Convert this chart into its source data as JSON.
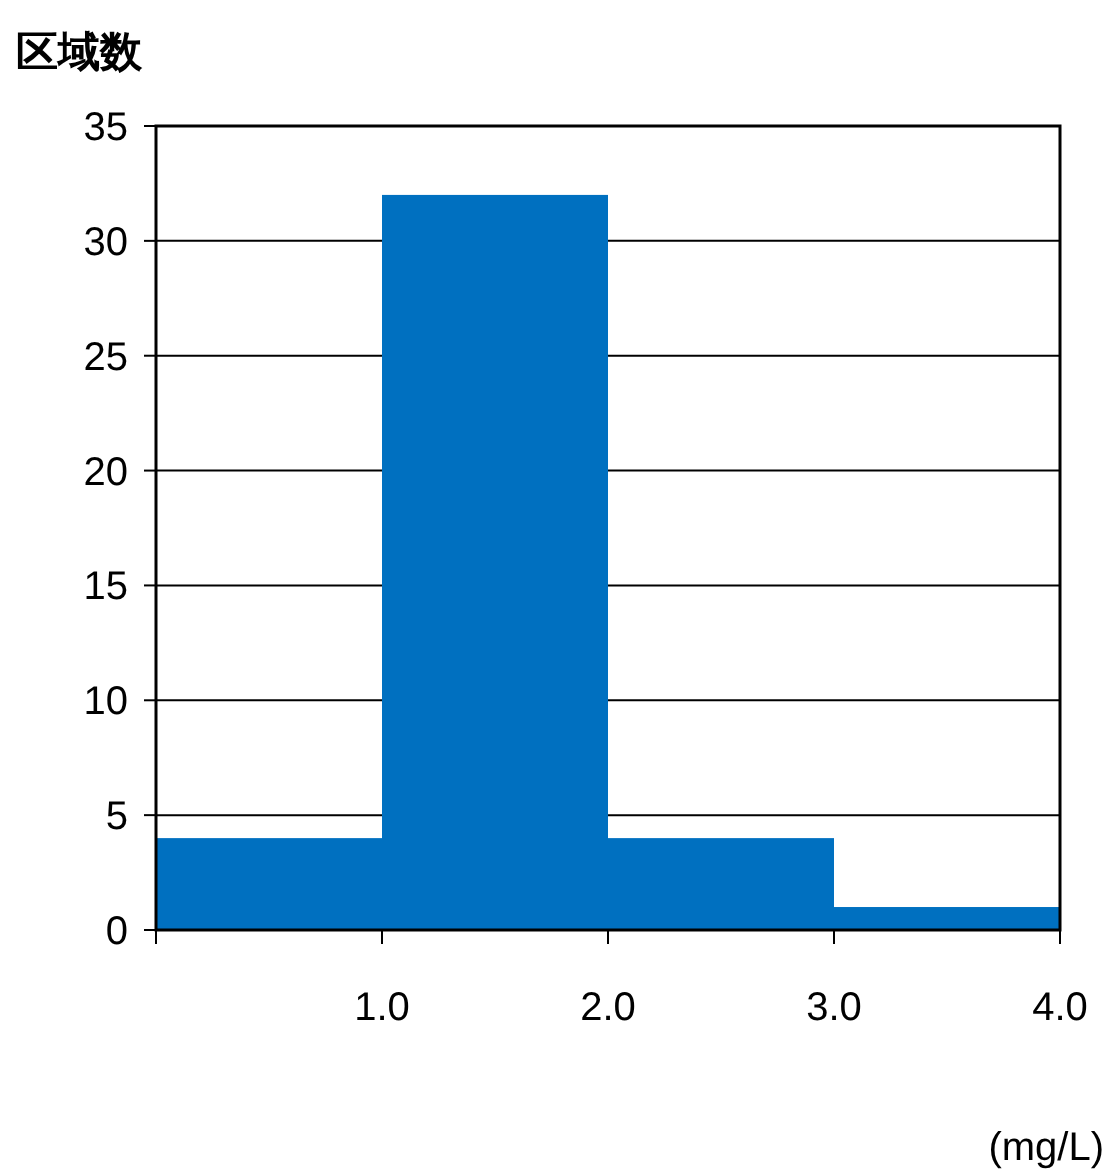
{
  "chart_data": {
    "type": "histogram",
    "ylabel": "区域数",
    "xlabel": "(mg/L)",
    "bins": [
      0,
      1,
      2,
      3,
      4
    ],
    "values": [
      4,
      32,
      4,
      1
    ],
    "color": "#0070c0",
    "xlim": [
      0,
      4
    ],
    "xticks": [
      {
        "value": 0,
        "label": null
      },
      {
        "value": 1,
        "label": "1.0"
      },
      {
        "value": 2,
        "label": "2.0"
      },
      {
        "value": 3,
        "label": "3.0"
      },
      {
        "value": 4,
        "label": "4.0"
      }
    ],
    "ylim": [
      0,
      35
    ],
    "yticks": [
      0,
      5,
      10,
      15,
      20,
      25,
      30,
      35
    ],
    "grid": "y"
  }
}
